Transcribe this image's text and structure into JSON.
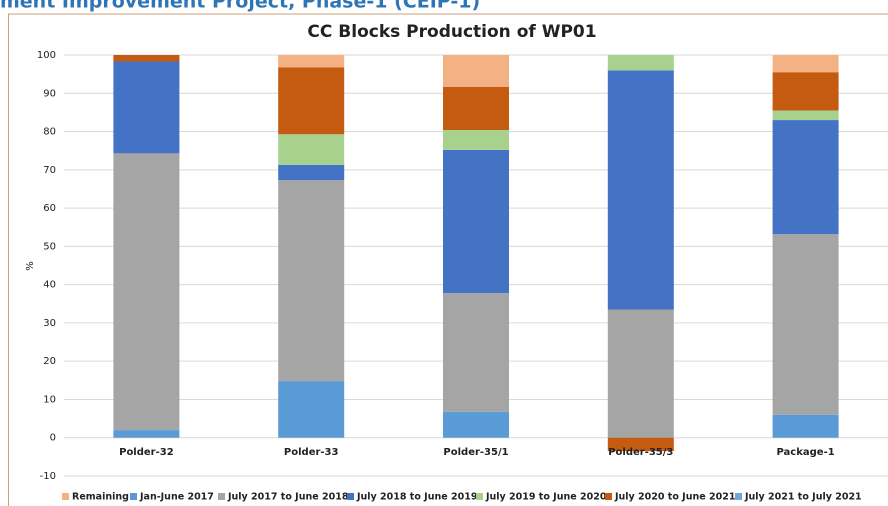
{
  "header": "ment Improvement Project, Phase-1 (CEIP-1)",
  "chart_data": {
    "type": "stacked_bar",
    "title": "CC Blocks Production of WP01",
    "y_label": "%",
    "categories": [
      "Polder-32",
      "Polder-33",
      "Polder-35/1",
      "Polder-35/3",
      "Package-1"
    ],
    "series": [
      {
        "name": "Jan-June 2017",
        "color": "#5b9bd5",
        "values": [
          2,
          14.8,
          6.8,
          0,
          6
        ]
      },
      {
        "name": "July 2017 to June 2018",
        "color": "#a5a5a5",
        "values": [
          72.3,
          52.5,
          31,
          33.5,
          47.2
        ]
      },
      {
        "name": "July 2018 to June 2019",
        "color": "#4472c4",
        "values": [
          24,
          4,
          37.4,
          62.5,
          29.8
        ]
      },
      {
        "name": "July 2019 to June 2020",
        "color": "#a9d18e",
        "values": [
          0,
          8,
          5.2,
          4,
          2.5
        ]
      },
      {
        "name": "July 2020 to June 2021",
        "color": "#c55a11",
        "values": [
          1.7,
          17.5,
          11.3,
          -3.5,
          10
        ]
      },
      {
        "name": "July 2021 to July 2021",
        "color": "#6fa8dc",
        "values": [
          0,
          0,
          0,
          0,
          0
        ]
      },
      {
        "name": "Remaining",
        "color": "#f4b183",
        "values": [
          0,
          3.2,
          8.3,
          0,
          4.5
        ]
      }
    ],
    "legend_order": [
      6,
      0,
      1,
      2,
      3,
      4,
      5
    ],
    "ylim": [
      -10,
      100
    ],
    "yticks": [
      -10,
      0,
      10,
      20,
      30,
      40,
      50,
      60,
      70,
      80,
      90,
      100
    ],
    "grid": true,
    "legend": "bottom"
  }
}
